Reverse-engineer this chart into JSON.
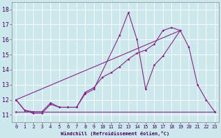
{
  "background_color": "#cce8ec",
  "grid_color": "#b0d8dc",
  "line_color": "#882288",
  "xlabel": "Windchill (Refroidissement éolien,°C)",
  "xlim": [
    -0.5,
    23.5
  ],
  "ylim": [
    10.5,
    18.5
  ],
  "yticks": [
    11,
    12,
    13,
    14,
    15,
    16,
    17,
    18
  ],
  "xticks": [
    0,
    1,
    2,
    3,
    4,
    5,
    6,
    7,
    8,
    9,
    10,
    11,
    12,
    13,
    14,
    15,
    16,
    17,
    18,
    19,
    20,
    21,
    22,
    23
  ],
  "line1_x": [
    0,
    1,
    2,
    3,
    4,
    5,
    6,
    7,
    8,
    9,
    12,
    13,
    14,
    15,
    16,
    17,
    19,
    20,
    21,
    22,
    23
  ],
  "line1_y": [
    12.0,
    11.3,
    11.1,
    11.1,
    11.7,
    11.5,
    11.5,
    11.5,
    12.4,
    12.7,
    16.3,
    17.8,
    16.0,
    12.7,
    14.3,
    14.9,
    16.6,
    15.5,
    13.0,
    12.0,
    11.2
  ],
  "line2_x": [
    0,
    1,
    2,
    3,
    4,
    5,
    6,
    7,
    8,
    9,
    10,
    11,
    12,
    13,
    14,
    15,
    16,
    17,
    18,
    19
  ],
  "line2_y": [
    12.0,
    11.3,
    11.2,
    11.2,
    11.8,
    11.5,
    11.5,
    11.5,
    12.5,
    12.8,
    13.5,
    13.8,
    14.2,
    14.7,
    15.1,
    15.3,
    15.7,
    16.6,
    16.8,
    16.6
  ],
  "line3_x": [
    0,
    23
  ],
  "line3_y": [
    11.2,
    11.2
  ],
  "line4_x": [
    0,
    19
  ],
  "line4_y": [
    12.0,
    16.6
  ],
  "lw": 0.8,
  "ms": 1.8,
  "tick_fontsize": 5,
  "xlabel_fontsize": 5
}
